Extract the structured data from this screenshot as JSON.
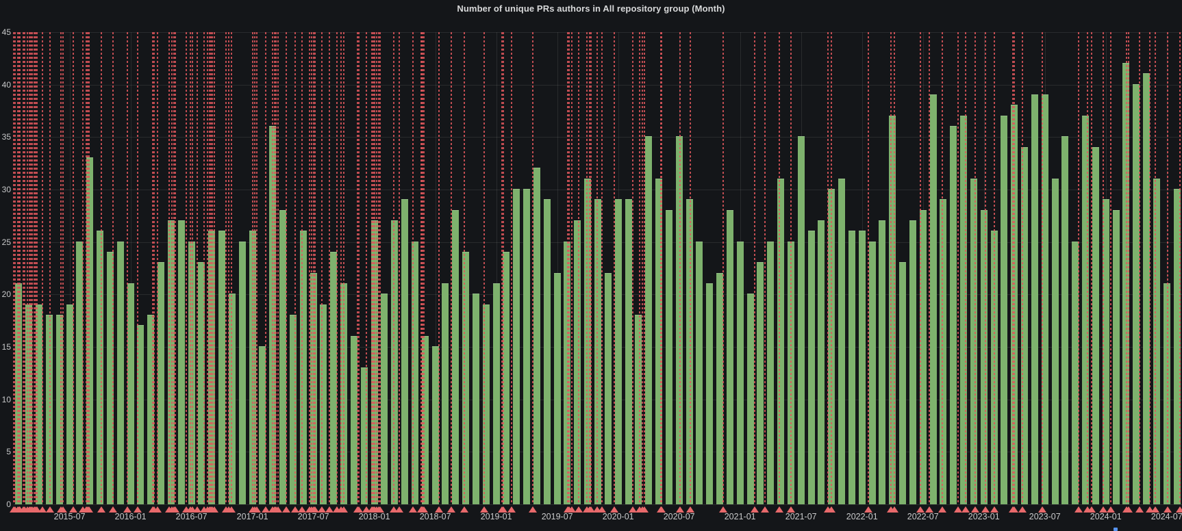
{
  "panel": {
    "title": "Number of unique PRs authors in All repository group (Month)"
  },
  "colors": {
    "background": "#141619",
    "title_text": "#d8d9da",
    "axis_text": "#c8c9ca",
    "grid": "rgba(255,255,255,0.09)",
    "bar": "#7eb26d",
    "annotation_line": "#e0575c",
    "annotation_marker": "#e8696b",
    "legend_hint": "#5794f2"
  },
  "chart_data": {
    "type": "bar",
    "title": "Number of unique PRs authors in All repository group (Month)",
    "xlabel": "",
    "ylabel": "",
    "ylim": [
      0,
      45
    ],
    "y_ticks": [
      0,
      5,
      10,
      15,
      20,
      25,
      30,
      35,
      40,
      45
    ],
    "grid": true,
    "legend_position": "none",
    "categories": [
      "2015-02",
      "2015-03",
      "2015-04",
      "2015-05",
      "2015-06",
      "2015-07",
      "2015-08",
      "2015-09",
      "2015-10",
      "2015-11",
      "2015-12",
      "2016-01",
      "2016-02",
      "2016-03",
      "2016-04",
      "2016-05",
      "2016-06",
      "2016-07",
      "2016-08",
      "2016-09",
      "2016-10",
      "2016-11",
      "2016-12",
      "2017-01",
      "2017-02",
      "2017-03",
      "2017-04",
      "2017-05",
      "2017-06",
      "2017-07",
      "2017-08",
      "2017-09",
      "2017-10",
      "2017-11",
      "2017-12",
      "2018-01",
      "2018-02",
      "2018-03",
      "2018-04",
      "2018-05",
      "2018-06",
      "2018-07",
      "2018-08",
      "2018-09",
      "2018-10",
      "2018-11",
      "2018-12",
      "2019-01",
      "2019-02",
      "2019-03",
      "2019-04",
      "2019-05",
      "2019-06",
      "2019-07",
      "2019-08",
      "2019-09",
      "2019-10",
      "2019-11",
      "2019-12",
      "2020-01",
      "2020-02",
      "2020-03",
      "2020-04",
      "2020-05",
      "2020-06",
      "2020-07",
      "2020-08",
      "2020-09",
      "2020-10",
      "2020-11",
      "2020-12",
      "2021-01",
      "2021-02",
      "2021-03",
      "2021-04",
      "2021-05",
      "2021-06",
      "2021-07",
      "2021-08",
      "2021-09",
      "2021-10",
      "2021-11",
      "2021-12",
      "2022-01",
      "2022-02",
      "2022-03",
      "2022-04",
      "2022-05",
      "2022-06",
      "2022-07",
      "2022-08",
      "2022-09",
      "2022-10",
      "2022-11",
      "2022-12",
      "2023-01",
      "2023-02",
      "2023-03",
      "2023-04",
      "2023-05",
      "2023-06",
      "2023-07",
      "2023-08",
      "2023-09",
      "2023-10",
      "2023-11",
      "2023-12",
      "2024-01",
      "2024-02",
      "2024-03",
      "2024-04",
      "2024-05",
      "2024-06",
      "2024-07",
      "2024-08"
    ],
    "values": [
      21,
      19,
      19,
      18,
      18,
      19,
      25,
      33,
      26,
      24,
      25,
      21,
      17,
      18,
      23,
      27,
      27,
      25,
      23,
      26,
      26,
      20,
      25,
      26,
      15,
      36,
      28,
      18,
      26,
      22,
      19,
      24,
      21,
      16,
      13,
      27,
      20,
      27,
      29,
      25,
      16,
      15,
      21,
      28,
      24,
      20,
      19,
      21,
      24,
      30,
      30,
      32,
      29,
      22,
      25,
      27,
      31,
      29,
      22,
      29,
      29,
      18,
      35,
      31,
      28,
      35,
      29,
      25,
      21,
      22,
      28,
      25,
      20,
      23,
      25,
      31,
      25,
      35,
      26,
      27,
      30,
      31,
      26,
      26,
      25,
      27,
      37,
      23,
      27,
      28,
      39,
      29,
      36,
      37,
      31,
      28,
      26,
      37,
      38,
      34,
      39,
      39,
      31,
      35,
      25,
      37,
      34,
      29,
      28,
      42,
      40,
      41,
      31,
      21,
      30
    ],
    "x_tick_labels": [
      "2015-07",
      "2016-01",
      "2016-07",
      "2017-01",
      "2017-07",
      "2018-01",
      "2018-07",
      "2019-01",
      "2019-07",
      "2020-01",
      "2020-07",
      "2021-01",
      "2021-07",
      "2022-01",
      "2022-07",
      "2023-01",
      "2023-07",
      "2024-01",
      "2024-07"
    ],
    "annotations_pct": [
      0.0,
      0.12,
      0.35,
      0.47,
      0.53,
      0.82,
      0.94,
      1.17,
      1.35,
      1.47,
      1.61,
      1.73,
      1.88,
      1.99,
      2.46,
      3.11,
      4.04,
      4.22,
      5.1,
      5.92,
      6.21,
      6.33,
      6.45,
      7.5,
      8.5,
      9.73,
      10.61,
      11.9,
      12.02,
      12.31,
      13.31,
      13.54,
      13.72,
      13.83,
      14.77,
      15.12,
      15.3,
      15.71,
      16.3,
      16.59,
      16.76,
      16.88,
      17.0,
      17.17,
      18.17,
      18.4,
      18.64,
      20.46,
      20.63,
      20.81,
      21.57,
      22.16,
      22.33,
      22.45,
      22.63,
      23.33,
      24.09,
      24.68,
      25.32,
      25.5,
      25.67,
      25.79,
      26.38,
      27.02,
      27.67,
      28.02,
      28.25,
      29.43,
      29.54,
      30.19,
      30.65,
      30.77,
      30.89,
      31.07,
      31.24,
      31.36,
      32.53,
      33.0,
      34.17,
      34.88,
      34.93,
      35.0,
      35.11,
      36.4,
      37.46,
      38.57,
      40.27,
      41.79,
      41.91,
      42.61,
      44.43,
      47.42,
      47.54,
      47.77,
      48.36,
      49.06,
      49.3,
      49.41,
      49.94,
      50.35,
      51.41,
      52.99,
      53.58,
      53.81,
      53.99,
      55.39,
      55.45,
      57.03,
      57.91,
      60.73,
      63.42,
      64.3,
      65.53,
      66.53,
      69.7,
      69.99,
      73.15,
      75.09,
      75.38,
      77.61,
      78.37,
      79.48,
      80.83,
      81.48,
      82.3,
      83.18,
      83.94,
      85.52,
      85.64,
      86.34,
      88.04,
      91.15,
      91.91,
      92.26,
      93.26,
      93.9,
      95.25,
      95.43,
      96.37,
      97.24,
      97.71,
      98.77,
      99.8
    ]
  }
}
